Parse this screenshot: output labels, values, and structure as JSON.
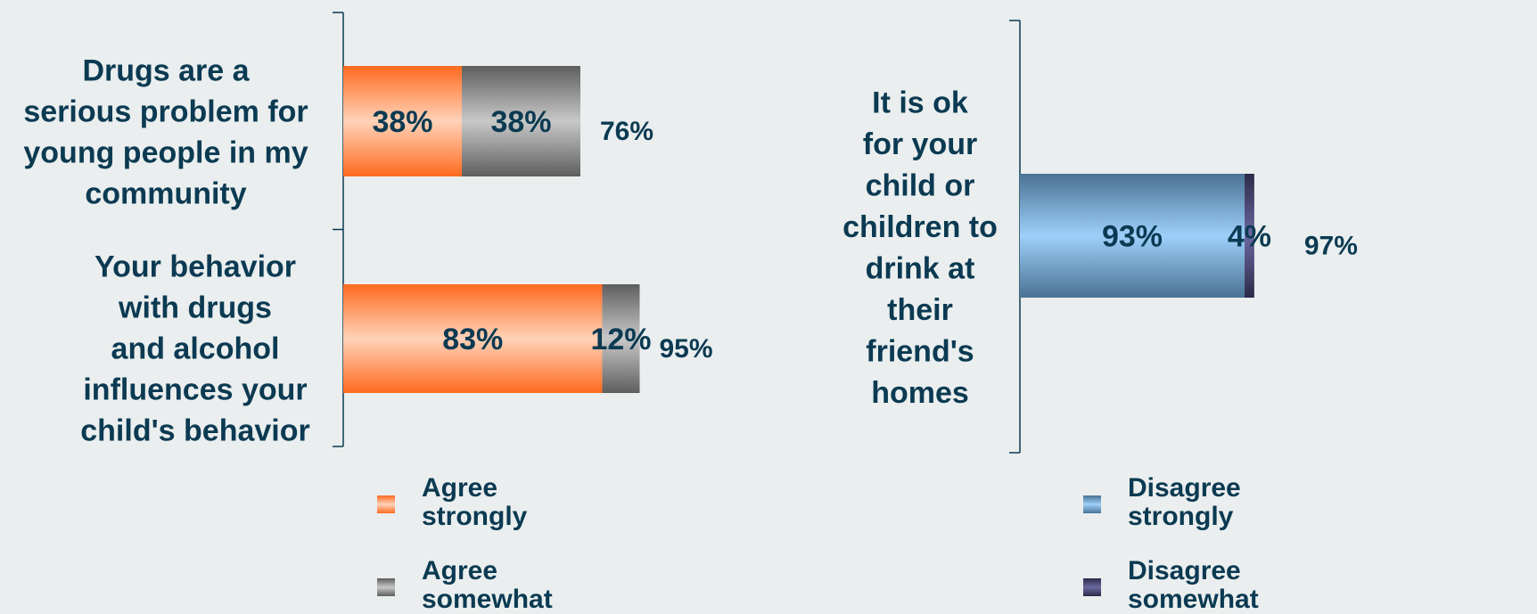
{
  "colors": {
    "agree_strongly": "#ff6a1f",
    "agree_somewhat": "#6e6e6e",
    "disagree_strongly": "#4e7da3",
    "disagree_somewhat": "#3d3a66",
    "text": "#0b3a52",
    "axis": "#0b3a52"
  },
  "chart_data": [
    {
      "type": "bar",
      "orientation": "horizontal",
      "stacked": true,
      "categories": [
        "Drugs are a serious problem for young people in my community",
        "Your behavior with drugs and alcohol influences your child's behavior"
      ],
      "category_lines": [
        [
          "Drugs are a",
          "serious problem for",
          "young people in my",
          "community"
        ],
        [
          "Your behavior",
          "with drugs",
          "and alcohol",
          "influences your",
          "child's behavior"
        ]
      ],
      "series": [
        {
          "name": "Agree strongly",
          "values": [
            38,
            83
          ],
          "labels": [
            "38%",
            "83%"
          ]
        },
        {
          "name": "Agree somewhat",
          "values": [
            38,
            12
          ],
          "labels": [
            "38%",
            "12%"
          ]
        }
      ],
      "totals": [
        "76%",
        "95%"
      ],
      "xlim": [
        0,
        100
      ],
      "legend": {
        "position": "bottom",
        "items": [
          {
            "label": "Agree\nstrongly",
            "color_key": "agree_strongly"
          },
          {
            "label": "Agree\nsomewhat",
            "color_key": "agree_somewhat"
          }
        ]
      }
    },
    {
      "type": "bar",
      "orientation": "horizontal",
      "stacked": true,
      "categories": [
        "It is ok for your child or children to drink at their friend's homes"
      ],
      "category_lines": [
        [
          "It is ok",
          "for your",
          "child or",
          "children to",
          "drink at",
          "their",
          "friend's",
          "homes"
        ]
      ],
      "series": [
        {
          "name": "Disagree strongly",
          "values": [
            93
          ],
          "labels": [
            "93%"
          ]
        },
        {
          "name": "Disagree somewhat",
          "values": [
            4
          ],
          "labels": [
            "4%"
          ]
        }
      ],
      "totals": [
        "97%"
      ],
      "xlim": [
        0,
        100
      ],
      "legend": {
        "position": "bottom",
        "items": [
          {
            "label": "Disagree\nstrongly",
            "color_key": "disagree_strongly"
          },
          {
            "label": "Disagree\nsomewhat",
            "color_key": "disagree_somewhat"
          }
        ]
      }
    }
  ]
}
